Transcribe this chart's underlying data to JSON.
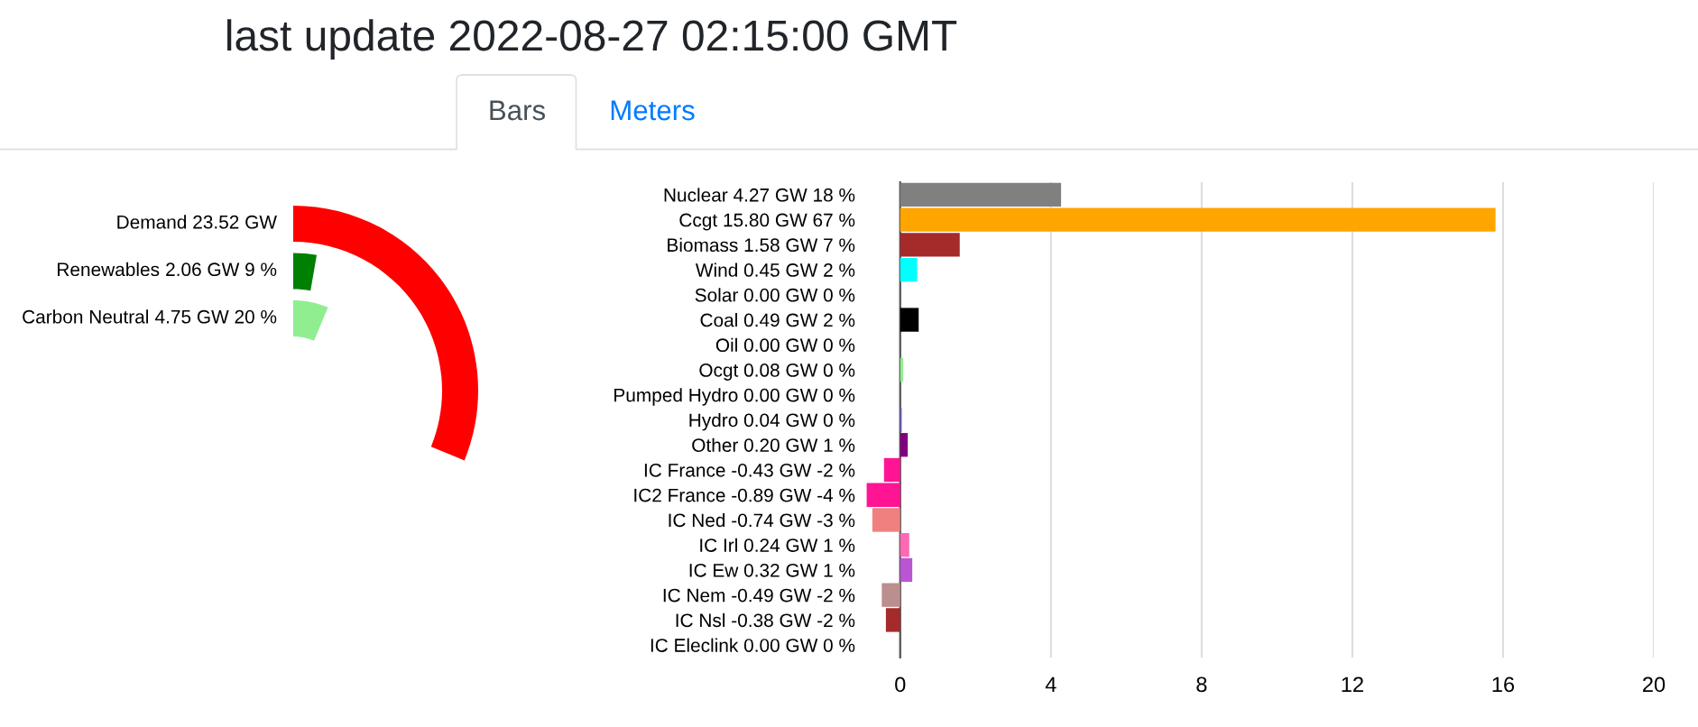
{
  "chart_data": [
    {
      "type": "other",
      "title": "last update 2022-08-27 02:15:00 GMT",
      "annotations": [
        "Bars",
        "Meters"
      ],
      "categories": [
        "Demand",
        "Renewables",
        "Carbon Neutral"
      ],
      "values": [
        23.52,
        2.06,
        4.75
      ],
      "value_labels": [
        "23.52 GW",
        "2.06 GW 9 %",
        "4.75 GW 20 %"
      ],
      "colors": [
        "#ff0000",
        "#008000",
        "#90ee90"
      ]
    },
    {
      "type": "bar",
      "orientation": "horizontal",
      "categories": [
        "Nuclear 4.27 GW 18 %",
        "Ccgt 15.80 GW 67 %",
        "Biomass 1.58 GW 7 %",
        "Wind 0.45 GW 2 %",
        "Solar 0.00 GW 0 %",
        "Coal 0.49 GW 2 %",
        "Oil 0.00 GW 0 %",
        "Ocgt 0.08 GW 0 %",
        "Pumped Hydro 0.00 GW 0 %",
        "Hydro 0.04 GW 0 %",
        "Other 0.20 GW 1 %",
        "IC France -0.43 GW -2 %",
        "IC2 France -0.89 GW -4 %",
        "IC Ned -0.74 GW -3 %",
        "IC Irl 0.24 GW 1 %",
        "IC Ew 0.32 GW 1 %",
        "IC Nem -0.49 GW -2 %",
        "IC Nsl -0.38 GW -2 %",
        "IC Eleclink 0.00 GW 0 %"
      ],
      "values": [
        4.27,
        15.8,
        1.58,
        0.45,
        0,
        0.49,
        0,
        0.08,
        0,
        0.04,
        0.2,
        -0.43,
        -0.89,
        -0.74,
        0.24,
        0.32,
        -0.49,
        -0.38,
        0
      ],
      "colors": [
        "#808080",
        "#ffa500",
        "#a52a2a",
        "#00ffff",
        null,
        "#000000",
        null,
        "#90ee90",
        null,
        "#6a5acd",
        "#800080",
        "#ff1493",
        "#ff1493",
        "#f08080",
        "#ff69b4",
        "#ba55d3",
        "#bc8f8f",
        "#a52a2a",
        null
      ],
      "xlim": [
        -1,
        20
      ],
      "xticks": [
        0,
        4,
        8,
        12,
        16,
        20
      ],
      "grid": "x"
    }
  ]
}
